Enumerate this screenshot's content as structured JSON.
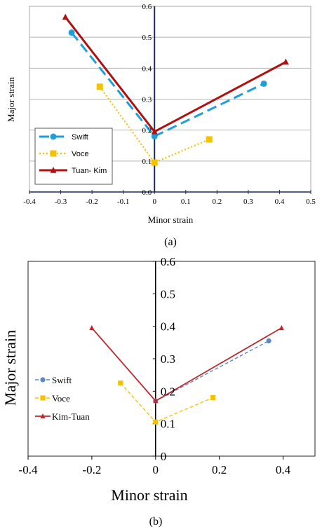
{
  "chart_data": [
    {
      "type": "line",
      "caption": "(a)",
      "xlabel": "Minor strain",
      "ylabel": "Major strain",
      "xlim": [
        -0.4,
        0.5
      ],
      "ylim": [
        0.0,
        0.6
      ],
      "xticks": [
        "-0.4",
        "-0.3",
        "-0.2",
        "-0.1",
        "0",
        "0.1",
        "0.2",
        "0.3",
        "0.4",
        "0.5"
      ],
      "yticks": [
        "0.0",
        "0.1",
        "0.2",
        "0.3",
        "0.4",
        "0.5",
        "0.6"
      ],
      "grid": "horizontal",
      "legend_position": "bottom-left",
      "series": [
        {
          "name": "Swift",
          "x": [
            -0.265,
            0.0,
            0.35
          ],
          "y": [
            0.515,
            0.18,
            0.35
          ],
          "color": "#1f9fd9",
          "style": "long-dash",
          "marker": "circle"
        },
        {
          "name": "Voce",
          "x": [
            -0.175,
            0.0,
            0.175
          ],
          "y": [
            0.34,
            0.095,
            0.17
          ],
          "color": "#f5c200",
          "style": "dotted",
          "marker": "square"
        },
        {
          "name": "Tuan- Kim",
          "x": [
            -0.285,
            0.0,
            0.42
          ],
          "y": [
            0.565,
            0.195,
            0.42
          ],
          "color": "#b01010",
          "style": "solid",
          "marker": "triangle"
        }
      ]
    },
    {
      "type": "line",
      "caption": "(b)",
      "xlabel": "Minor strain",
      "ylabel": "Major strain",
      "xlim": [
        -0.4,
        0.5
      ],
      "ylim": [
        0.0,
        0.6
      ],
      "xticks": [
        "-0.4",
        "-0.2",
        "0",
        "0.2",
        "0.4"
      ],
      "yticks": [
        "0",
        "0.1",
        "0.2",
        "0.3",
        "0.4",
        "0.5",
        "0.6"
      ],
      "grid": "none",
      "legend_position": "left",
      "series": [
        {
          "name": "Swift",
          "x": [
            0.0,
            0.355
          ],
          "y": [
            0.17,
            0.355
          ],
          "color": "#5b87c7",
          "style": "dashed",
          "marker": "circle"
        },
        {
          "name": "Voce",
          "x": [
            -0.11,
            0.0,
            0.18
          ],
          "y": [
            0.225,
            0.105,
            0.18
          ],
          "color": "#f5c200",
          "style": "dashed",
          "marker": "square"
        },
        {
          "name": "Kim-Tuan",
          "x": [
            -0.2,
            0.0,
            0.395
          ],
          "y": [
            0.395,
            0.17,
            0.395
          ],
          "color": "#c0282d",
          "style": "solid",
          "marker": "triangle"
        }
      ]
    }
  ]
}
